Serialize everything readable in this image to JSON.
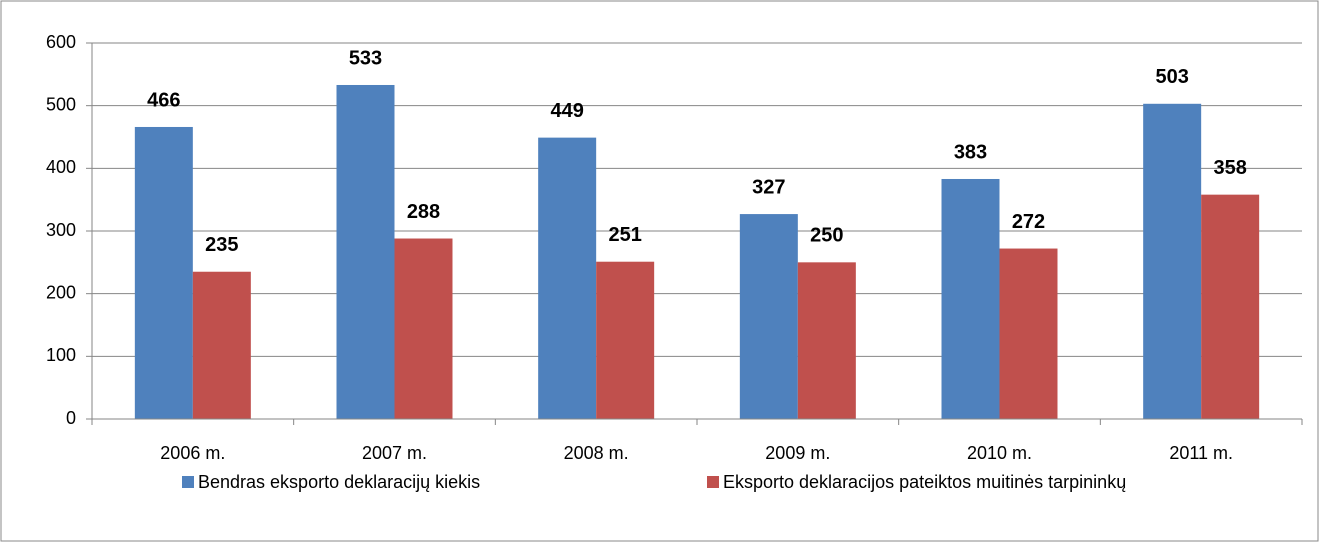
{
  "chart_data": {
    "type": "bar",
    "categories": [
      "2006 m.",
      "2007 m.",
      "2008 m.",
      "2009 m.",
      "2010 m.",
      "2011 m."
    ],
    "series": [
      {
        "name": "Bendras eksporto deklaracijų kiekis",
        "color": "#4f81bd",
        "values": [
          466,
          533,
          449,
          327,
          383,
          503
        ]
      },
      {
        "name": "Eksporto deklaracijos pateiktos muitinės tarpininkų",
        "color": "#c0504d",
        "values": [
          235,
          288,
          251,
          250,
          272,
          358
        ]
      }
    ],
    "ylim": [
      0,
      600
    ],
    "yticks": [
      0,
      100,
      200,
      300,
      400,
      500,
      600
    ],
    "grid": true,
    "legend": "bottom"
  }
}
